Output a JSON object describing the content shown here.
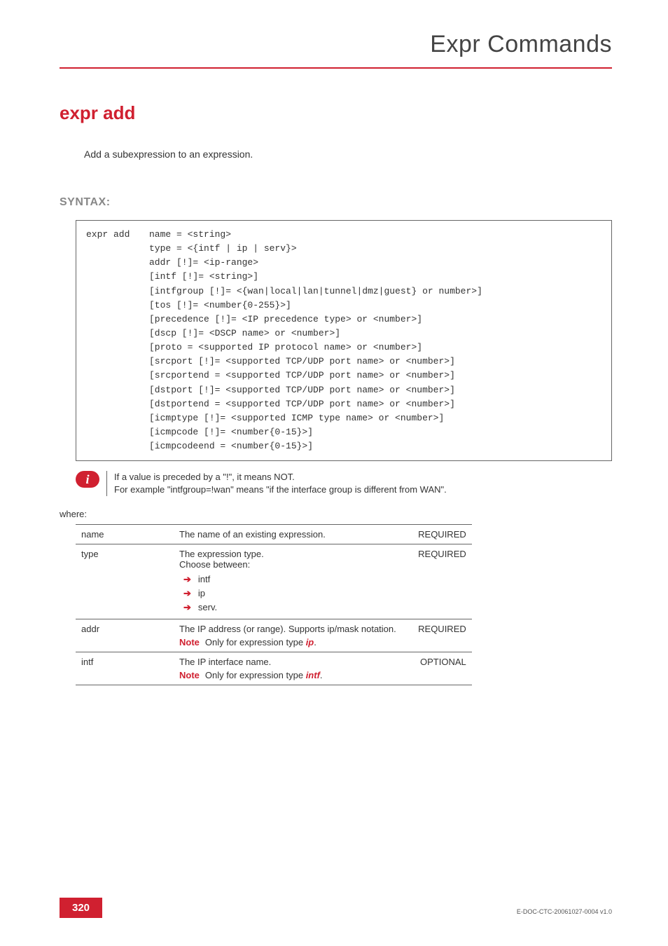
{
  "header": {
    "title": "Expr Commands"
  },
  "command": {
    "title": "expr add",
    "description": "Add a subexpression to an expression."
  },
  "syntax": {
    "label": "SYNTAX:",
    "cmd": "expr add",
    "body": "name = <string>\ntype = <{intf | ip | serv}>\naddr [!]= <ip-range>\n[intf [!]= <string>]\n[intfgroup [!]= <{wan|local|lan|tunnel|dmz|guest} or number>]\n[tos [!]= <number{0-255}>]\n[precedence [!]= <IP precedence type> or <number>]\n[dscp [!]= <DSCP name> or <number>]\n[proto = <supported IP protocol name> or <number>]\n[srcport [!]= <supported TCP/UDP port name> or <number>]\n[srcportend = <supported TCP/UDP port name> or <number>]\n[dstport [!]= <supported TCP/UDP port name> or <number>]\n[dstportend = <supported TCP/UDP port name> or <number>]\n[icmptype [!]= <supported ICMP type name> or <number>]\n[icmpcode [!]= <number{0-15}>]\n[icmpcodeend = <number{0-15}>]"
  },
  "info": {
    "line1": "If a value is preceded by a \"!\", it means NOT.",
    "line2": "For example \"intfgroup=!wan\" means \"if the interface group is different from WAN\"."
  },
  "where_label": "where:",
  "params": [
    {
      "name": "name",
      "desc": "The name of an existing expression.",
      "req": "REQUIRED",
      "bullets": [],
      "note": null,
      "note_em": null,
      "note_suffix": null,
      "lead": null
    },
    {
      "name": "type",
      "desc": "The expression type.",
      "lead": "Choose between:",
      "req": "REQUIRED",
      "bullets": [
        "intf",
        "ip",
        "serv."
      ],
      "note": null,
      "note_em": null,
      "note_suffix": null
    },
    {
      "name": "addr",
      "desc": "The IP address (or range). Supports ip/mask notation.",
      "req": "REQUIRED",
      "bullets": [],
      "lead": null,
      "note": "Only for expression type ",
      "note_em": "ip",
      "note_suffix": "."
    },
    {
      "name": "intf",
      "desc": "The IP interface name.",
      "req": "OPTIONAL",
      "bullets": [],
      "lead": null,
      "note": "Only for expression type ",
      "note_em": "intf",
      "note_suffix": "."
    }
  ],
  "note_label": "Note",
  "footer": {
    "page": "320",
    "docid": "E-DOC-CTC-20061027-0004 v1.0"
  },
  "colors": {
    "accent": "#d02030",
    "rule": "#d02030",
    "text": "#333333",
    "muted": "#888888",
    "border": "#666666"
  },
  "typography": {
    "body_font": "Arial",
    "mono_font": "Courier New",
    "header_size_pt": 26,
    "cmd_title_pt": 20,
    "body_pt": 10
  }
}
